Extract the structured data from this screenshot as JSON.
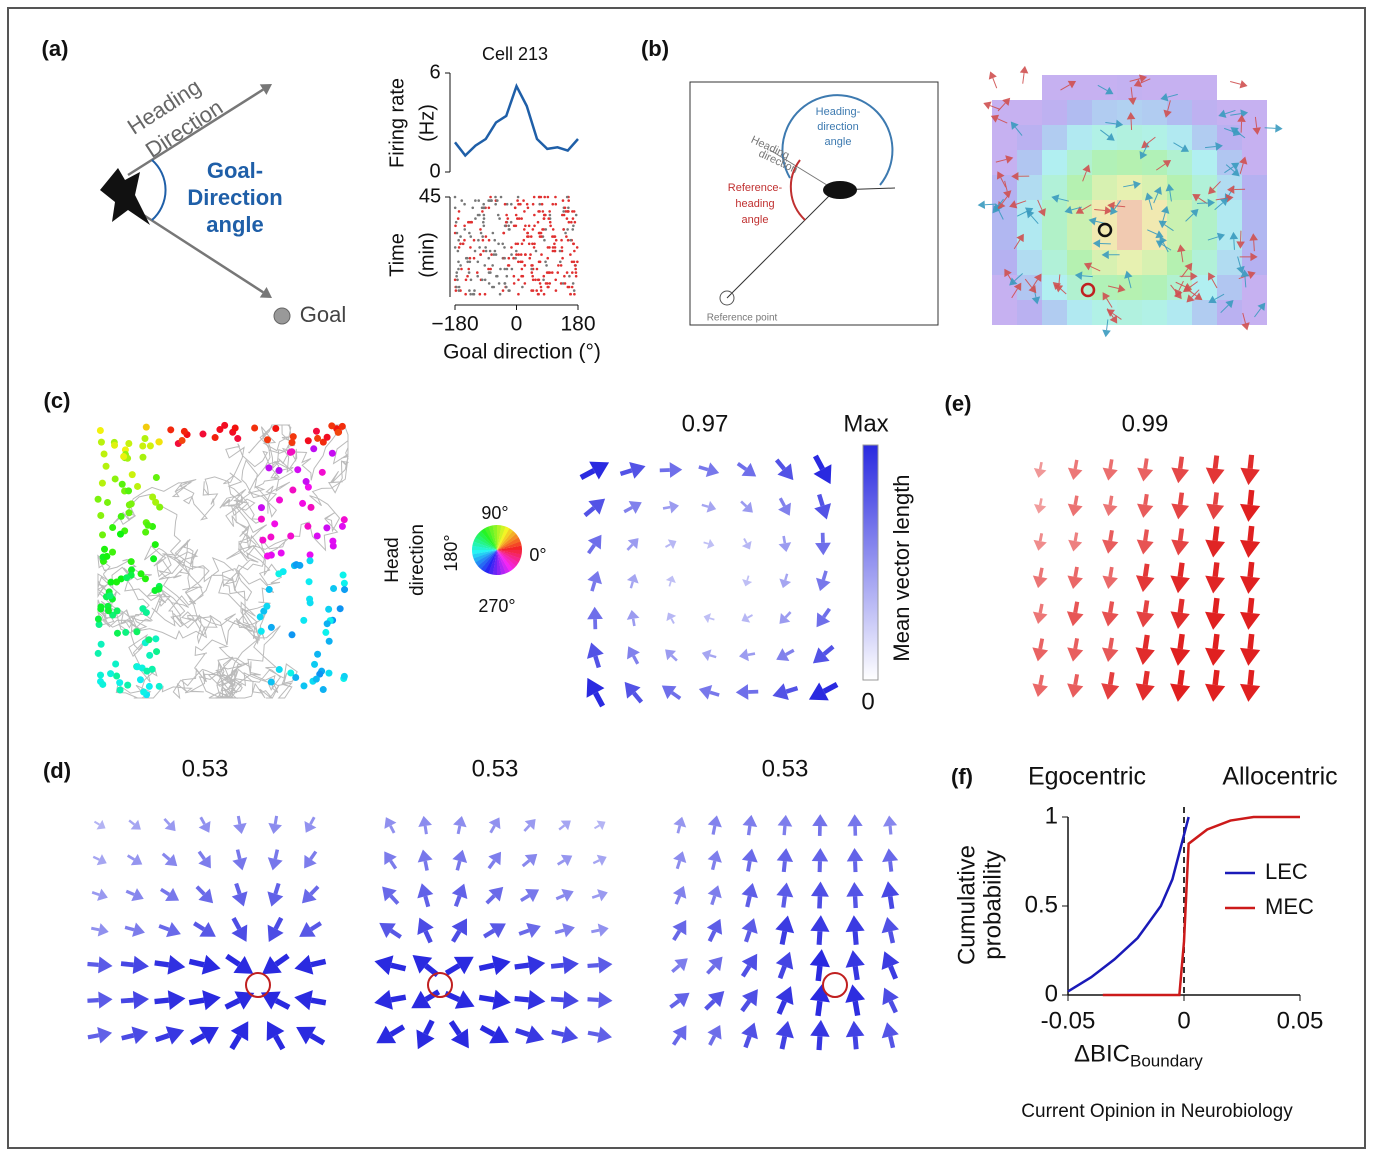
{
  "panel_a": {
    "label": "(a)",
    "heading": [
      "Heading",
      "Direction"
    ],
    "goal_angle": [
      "Goal-",
      "Direction",
      "angle"
    ],
    "goal": "Goal",
    "chart": {
      "type": "line",
      "title": "Cell 213",
      "ylabel": [
        "Firing rate",
        "(Hz)"
      ],
      "x": [
        -180,
        -150,
        -120,
        -90,
        -60,
        -30,
        0,
        30,
        60,
        90,
        120,
        150,
        180
      ],
      "values": [
        1.8,
        1.0,
        1.6,
        2.0,
        3.0,
        3.4,
        5.2,
        4.0,
        2.0,
        1.4,
        1.5,
        1.3,
        2.0
      ],
      "color": "#1f5fa8",
      "ylim": [
        0,
        6
      ],
      "yticks": [
        0,
        6
      ],
      "xlim": [
        -180,
        180
      ],
      "xticks": [
        {
          "value": -180,
          "label": "−180"
        },
        0,
        180
      ],
      "xlabel": "Goal direction (°)",
      "raster_ylabel": [
        "Time",
        "(min)"
      ],
      "raster_ylim": [
        0,
        45
      ],
      "raster_yticks": [
        45
      ]
    }
  },
  "panel_b": {
    "label": "(b)",
    "heading_angle": [
      "Heading-",
      "direction",
      "angle"
    ],
    "heading": [
      "Heading",
      "direction"
    ],
    "reference_angle": [
      "Reference-",
      "heading",
      "angle"
    ],
    "reference_point": "Reference point"
  },
  "panel_c": {
    "label": "(c)",
    "wheel_title": [
      "Head",
      "direction"
    ],
    "wheel_labels": [
      "90°",
      "0°",
      "180°",
      "270°"
    ],
    "score": 0.97,
    "colorbar_max": "Max",
    "colorbar_min": 0,
    "colorbar_label": "Mean vector length"
  },
  "panel_e": {
    "label": "(e)",
    "score": 0.99
  },
  "panel_d": {
    "label": "(d)",
    "scores": [
      0.53,
      0.53,
      0.53
    ]
  },
  "panel_f": {
    "label": "(f)",
    "chart": {
      "type": "line",
      "titles": [
        "Egocentric",
        "Allocentric"
      ],
      "ylabel": [
        "Cumulative",
        "probability"
      ],
      "xlabel": "ΔBIC",
      "xlabel_sub": "Boundary",
      "xlim": [
        -0.05,
        0.05
      ],
      "xticks": [
        {
          "value": -0.05,
          "label": "-0.05"
        },
        0,
        0.05
      ],
      "ylim": [
        0,
        1
      ],
      "yticks": [
        0,
        0.5,
        1
      ],
      "series": [
        {
          "name": "LEC",
          "color": "#1a1ab8",
          "x": [
            -0.05,
            -0.04,
            -0.03,
            -0.02,
            -0.01,
            -0.005,
            0,
            0.002
          ],
          "values": [
            0.02,
            0.1,
            0.2,
            0.32,
            0.5,
            0.65,
            0.9,
            1
          ]
        },
        {
          "name": "MEC",
          "color": "#cc1a1a",
          "x": [
            -0.035,
            -0.002,
            0,
            0.002,
            0.01,
            0.02,
            0.03,
            0.05
          ],
          "values": [
            0,
            0,
            0.3,
            0.85,
            0.93,
            0.98,
            1,
            1
          ]
        }
      ]
    }
  },
  "footer": "Current Opinion in Neurobiology"
}
